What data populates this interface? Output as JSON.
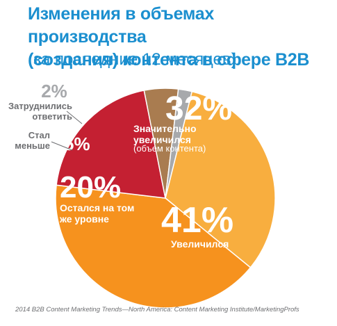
{
  "title_line1": "Изменения в объемах производства",
  "title_line2": "(создания) контента в сфере B2B",
  "subtitle": "(за последние 12 месяцев)",
  "source": "2014 B2B Content Marketing Trends—North America: Content Marketing Institute/MarketingProfs",
  "chart_data": {
    "type": "pie",
    "title": "Изменения в объемах производства (создания) контента в сфере B2B",
    "subtitle": "(за последние 12 месяцев)",
    "slices": [
      {
        "value": 32,
        "pct_label": "32%",
        "label_lines": [
          "Значительно",
          "увеличился"
        ],
        "note": "(объем контента)",
        "color": "#f8ae3f"
      },
      {
        "value": 41,
        "pct_label": "41%",
        "label_lines": [
          "Увеличился"
        ],
        "note": "",
        "color": "#f6921e"
      },
      {
        "value": 20,
        "pct_label": "20%",
        "label_lines": [
          "Остался на том",
          "же уровне"
        ],
        "note": "",
        "color": "#c42032"
      },
      {
        "value": 5,
        "pct_label": "5%",
        "label_lines": [
          "Стал",
          "меньше"
        ],
        "note": "",
        "color": "#a97c50"
      },
      {
        "value": 2,
        "pct_label": "2%",
        "label_lines": [
          "Затруднились",
          "ответить"
        ],
        "note": "",
        "color": "#a7a9ac"
      }
    ]
  }
}
